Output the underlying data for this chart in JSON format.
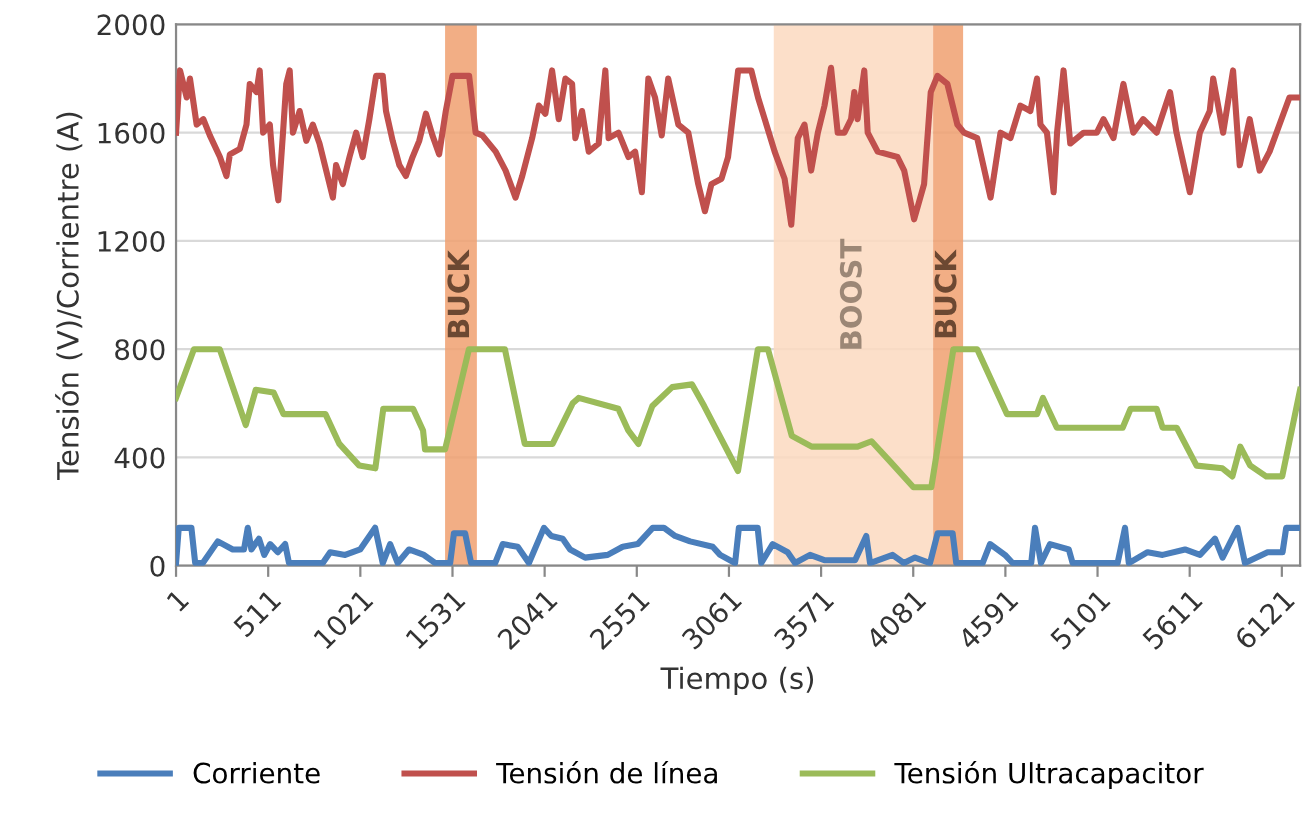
{
  "chart_data": {
    "type": "line",
    "xlabel": "Tiempo (s)",
    "ylabel": "Tensión (V)/Corrientre (A)",
    "xlim": [
      1,
      6222
    ],
    "xticks": [
      1,
      511,
      1021,
      1531,
      2041,
      2551,
      3061,
      3571,
      4081,
      4591,
      5101,
      5611,
      6121
    ],
    "ylim": [
      0,
      2000
    ],
    "yticks": [
      0,
      400,
      800,
      1200,
      1600,
      2000
    ],
    "grid": "y",
    "legend": "bottom",
    "line_style": "solid",
    "marker": "none",
    "bands": [
      {
        "axis": "x",
        "from": 1490,
        "to": 1666,
        "label": "BUCK",
        "color": "#f0a070"
      },
      {
        "axis": "x",
        "from": 3309,
        "to": 4191,
        "label": "BOOST",
        "color": "#fbd9bf"
      },
      {
        "axis": "x",
        "from": 4191,
        "to": 4357,
        "label": "BUCK",
        "color": "#f0a070"
      }
    ],
    "series": [
      {
        "name": "Corriente",
        "color": "#4a7ebb",
        "x": [
          1,
          16,
          32,
          66,
          86,
          107,
          149,
          232,
          315,
          377,
          398,
          418,
          460,
          489,
          522,
          564,
          605,
          626,
          813,
          854,
          937,
          1020,
          1103,
          1145,
          1186,
          1228,
          1290,
          1373,
          1435,
          1518,
          1539,
          1601,
          1634,
          1767,
          1809,
          1892,
          1954,
          2037,
          2078,
          2141,
          2182,
          2265,
          2390,
          2473,
          2556,
          2639,
          2701,
          2763,
          2846,
          2971,
          3012,
          3095,
          3116,
          3220,
          3240,
          3303,
          3386,
          3427,
          3510,
          3593,
          3759,
          3821,
          3842,
          3967,
          4029,
          4091,
          4174,
          4216,
          4299,
          4319,
          4465,
          4506,
          4589,
          4631,
          4734,
          4755,
          4788,
          4838,
          4942,
          4963,
          5212,
          5253,
          5274,
          5378,
          5461,
          5585,
          5668,
          5751,
          5793,
          5876,
          5917,
          6042,
          6125,
          6145,
          6208
        ],
        "values": [
          10,
          140,
          140,
          140,
          140,
          10,
          10,
          90,
          60,
          60,
          140,
          60,
          100,
          40,
          80,
          50,
          80,
          10,
          10,
          50,
          40,
          60,
          140,
          10,
          80,
          10,
          60,
          40,
          10,
          10,
          120,
          120,
          10,
          10,
          80,
          70,
          10,
          140,
          110,
          100,
          60,
          30,
          40,
          70,
          80,
          140,
          140,
          110,
          90,
          70,
          40,
          10,
          140,
          140,
          10,
          80,
          50,
          10,
          40,
          20,
          20,
          110,
          10,
          40,
          10,
          30,
          10,
          120,
          120,
          10,
          10,
          80,
          40,
          10,
          10,
          140,
          10,
          80,
          60,
          10,
          10,
          140,
          10,
          50,
          40,
          60,
          40,
          100,
          30,
          140,
          10,
          50,
          50,
          140,
          140
        ]
      },
      {
        "name": "Tensión de línea",
        "color": "#c0504d",
        "x": [
          1,
          23,
          60,
          78,
          115,
          152,
          188,
          244,
          280,
          299,
          354,
          391,
          409,
          446,
          464,
          483,
          520,
          538,
          567,
          593,
          611,
          630,
          648,
          685,
          722,
          758,
          795,
          832,
          869,
          887,
          924,
          961,
          998,
          1034,
          1071,
          1108,
          1145,
          1163,
          1200,
          1237,
          1273,
          1310,
          1347,
          1384,
          1420,
          1457,
          1494,
          1531,
          1623,
          1659,
          1696,
          1770,
          1825,
          1880,
          1917,
          1972,
          2009,
          2045,
          2082,
          2119,
          2156,
          2193,
          2211,
          2248,
          2285,
          2340,
          2358,
          2377,
          2395,
          2450,
          2505,
          2542,
          2579,
          2615,
          2652,
          2689,
          2725,
          2781,
          2836,
          2891,
          2928,
          2964,
          3020,
          3056,
          3112,
          3185,
          3222,
          3259,
          3314,
          3369,
          3406,
          3442,
          3479,
          3516,
          3553,
          3590,
          3626,
          3663,
          3700,
          3737,
          3755,
          3773,
          3810,
          3829,
          3884,
          3994,
          4031,
          4086,
          4141,
          4178,
          4215,
          4270,
          4325,
          4362,
          4435,
          4509,
          4564,
          4619,
          4674,
          4729,
          4766,
          4785,
          4821,
          4858,
          4877,
          4913,
          4950,
          5024,
          5097,
          5134,
          5189,
          5244,
          5299,
          5354,
          5428,
          5502,
          5538,
          5612,
          5667,
          5722,
          5741,
          5796,
          5851,
          5888,
          5943,
          5998,
          6053,
          6108,
          6163,
          6222
        ],
        "values": [
          1600,
          1830,
          1730,
          1800,
          1630,
          1650,
          1590,
          1510,
          1440,
          1520,
          1540,
          1630,
          1780,
          1750,
          1830,
          1600,
          1630,
          1480,
          1350,
          1600,
          1780,
          1830,
          1600,
          1680,
          1570,
          1630,
          1560,
          1460,
          1360,
          1480,
          1410,
          1510,
          1600,
          1510,
          1650,
          1810,
          1810,
          1680,
          1570,
          1480,
          1440,
          1510,
          1570,
          1670,
          1590,
          1520,
          1680,
          1810,
          1810,
          1600,
          1590,
          1530,
          1460,
          1360,
          1440,
          1580,
          1700,
          1670,
          1830,
          1650,
          1800,
          1780,
          1580,
          1680,
          1530,
          1560,
          1700,
          1830,
          1580,
          1600,
          1510,
          1530,
          1380,
          1800,
          1730,
          1590,
          1800,
          1630,
          1600,
          1410,
          1310,
          1410,
          1430,
          1510,
          1830,
          1830,
          1730,
          1650,
          1530,
          1430,
          1260,
          1580,
          1630,
          1460,
          1600,
          1700,
          1840,
          1600,
          1600,
          1650,
          1750,
          1650,
          1830,
          1600,
          1530,
          1510,
          1460,
          1280,
          1410,
          1750,
          1810,
          1780,
          1630,
          1600,
          1580,
          1360,
          1600,
          1580,
          1700,
          1680,
          1800,
          1630,
          1600,
          1380,
          1600,
          1830,
          1560,
          1600,
          1600,
          1650,
          1580,
          1780,
          1600,
          1650,
          1600,
          1750,
          1600,
          1380,
          1600,
          1680,
          1800,
          1600,
          1830,
          1480,
          1650,
          1460,
          1530,
          1630,
          1730,
          1730
        ]
      },
      {
        "name": "Tensión Ultracapacitor",
        "color": "#9bbb59",
        "x": [
          1,
          100,
          243,
          387,
          442,
          541,
          596,
          828,
          905,
          1015,
          1104,
          1148,
          1313,
          1368,
          1379,
          1490,
          1622,
          1821,
          1931,
          2085,
          2196,
          2229,
          2449,
          2504,
          2560,
          2637,
          2747,
          2857,
          2924,
          3111,
          3221,
          3277,
          3409,
          3519,
          3773,
          3850,
          3960,
          4082,
          4181,
          4303,
          4435,
          4600,
          4766,
          4799,
          4876,
          5240,
          5284,
          5428,
          5461,
          5539,
          5649,
          5792,
          5847,
          5891,
          5946,
          6035,
          6123,
          6222
        ],
        "values": [
          620,
          800,
          800,
          520,
          650,
          640,
          560,
          560,
          450,
          370,
          360,
          580,
          580,
          500,
          430,
          430,
          800,
          800,
          450,
          450,
          600,
          620,
          580,
          500,
          450,
          590,
          660,
          670,
          590,
          350,
          800,
          800,
          480,
          440,
          440,
          460,
          380,
          290,
          290,
          800,
          800,
          560,
          560,
          620,
          510,
          510,
          580,
          580,
          510,
          510,
          370,
          360,
          330,
          440,
          370,
          330,
          330,
          650
        ]
      }
    ]
  }
}
